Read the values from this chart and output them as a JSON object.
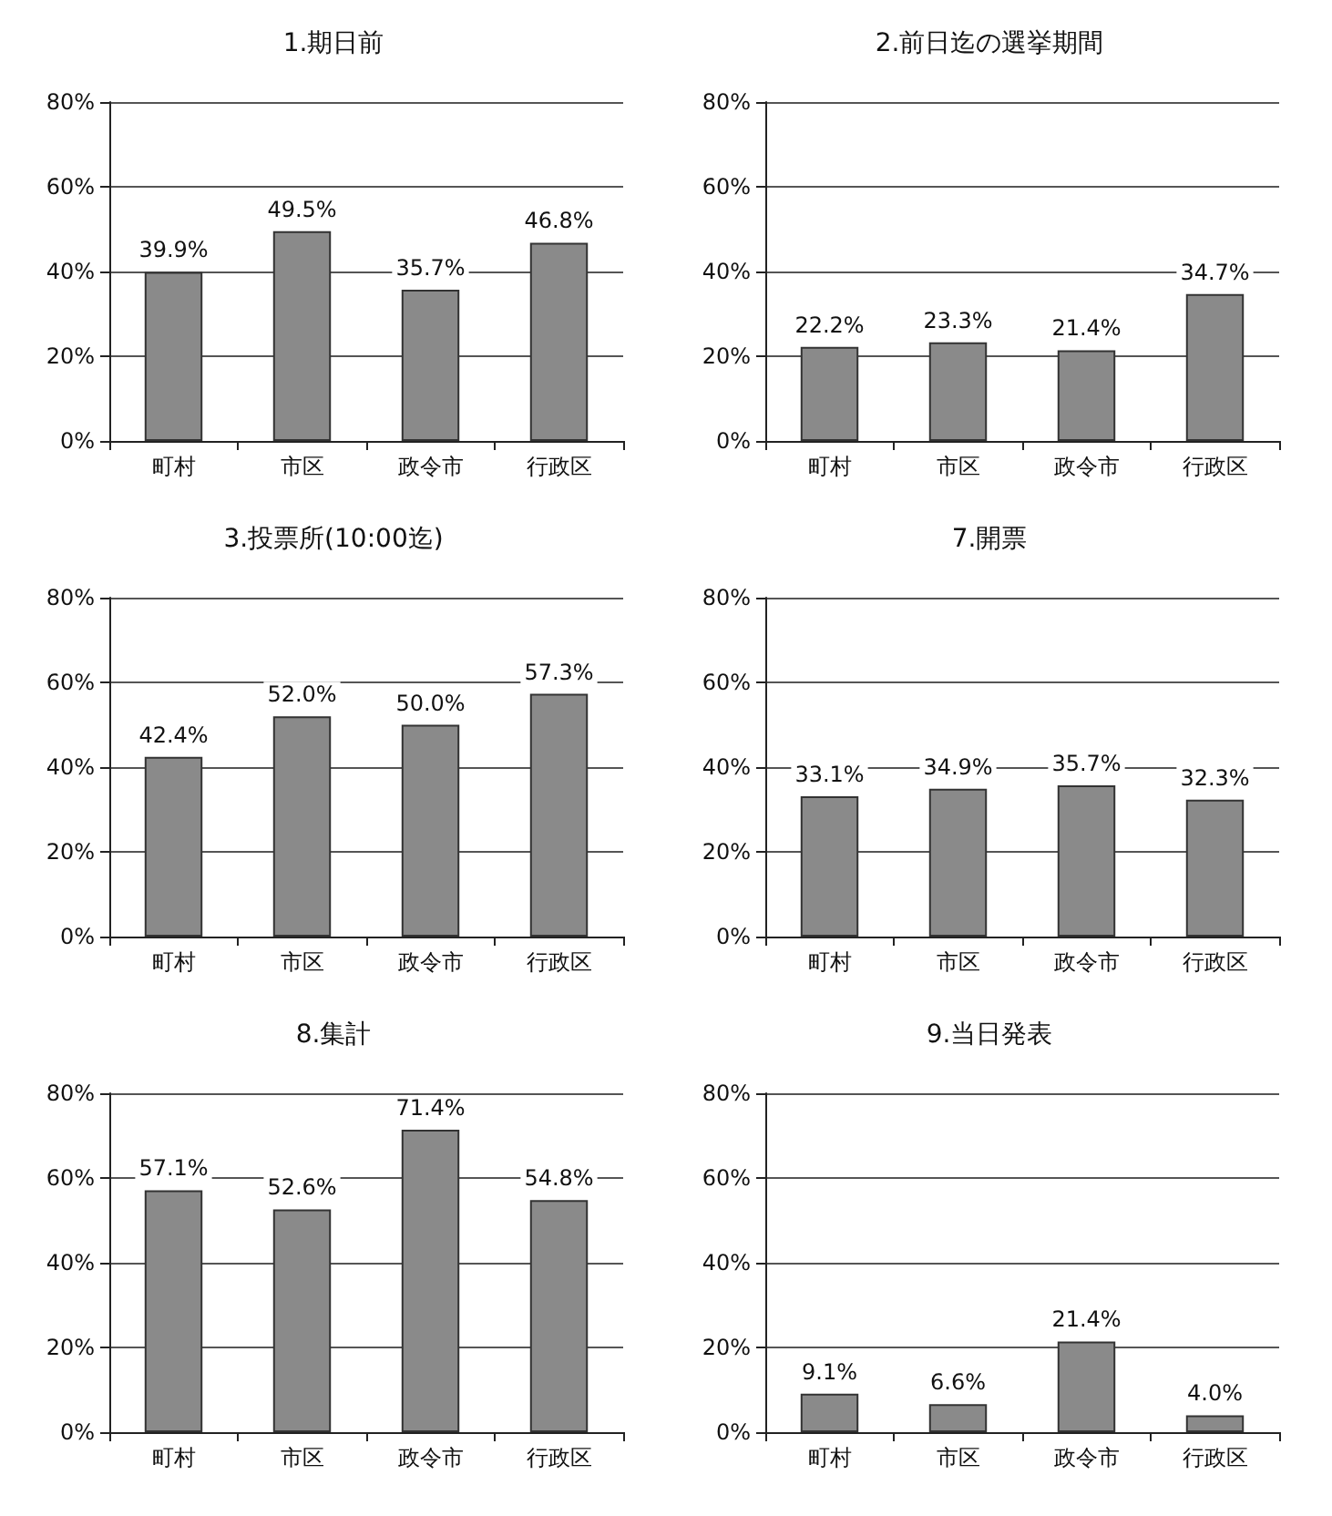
{
  "chart_data": [
    {
      "type": "bar",
      "title": "1.期日前",
      "categories": [
        "町村",
        "市区",
        "政令市",
        "行政区"
      ],
      "values": [
        39.9,
        49.5,
        35.7,
        46.8
      ],
      "color": "#8a8a8a",
      "value_labels": [
        "39.9%",
        "49.5%",
        "35.7%",
        "46.8%"
      ],
      "ylim": [
        0,
        80
      ],
      "yticks": [
        {
          "value": 0,
          "label": "0%"
        },
        {
          "value": 20,
          "label": "20%"
        },
        {
          "value": 40,
          "label": "40%"
        },
        {
          "value": 60,
          "label": "60%"
        },
        {
          "value": 80,
          "label": "80%"
        }
      ],
      "grid": "y"
    },
    {
      "type": "bar",
      "title": "2.前日迄の選挙期間",
      "categories": [
        "町村",
        "市区",
        "政令市",
        "行政区"
      ],
      "values": [
        22.2,
        23.3,
        21.4,
        34.7
      ],
      "color": "#8a8a8a",
      "value_labels": [
        "22.2%",
        "23.3%",
        "21.4%",
        "34.7%"
      ],
      "ylim": [
        0,
        80
      ],
      "yticks": [
        {
          "value": 0,
          "label": "0%"
        },
        {
          "value": 20,
          "label": "20%"
        },
        {
          "value": 40,
          "label": "40%"
        },
        {
          "value": 60,
          "label": "60%"
        },
        {
          "value": 80,
          "label": "80%"
        }
      ],
      "grid": "y"
    },
    {
      "type": "bar",
      "title": "3.投票所(10:00迄)",
      "categories": [
        "町村",
        "市区",
        "政令市",
        "行政区"
      ],
      "values": [
        42.4,
        52.0,
        50.0,
        57.3
      ],
      "color": "#8a8a8a",
      "value_labels": [
        "42.4%",
        "52.0%",
        "50.0%",
        "57.3%"
      ],
      "ylim": [
        0,
        80
      ],
      "yticks": [
        {
          "value": 0,
          "label": "0%"
        },
        {
          "value": 20,
          "label": "20%"
        },
        {
          "value": 40,
          "label": "40%"
        },
        {
          "value": 60,
          "label": "60%"
        },
        {
          "value": 80,
          "label": "80%"
        }
      ],
      "grid": "y"
    },
    {
      "type": "bar",
      "title": "7.開票",
      "categories": [
        "町村",
        "市区",
        "政令市",
        "行政区"
      ],
      "values": [
        33.1,
        34.9,
        35.7,
        32.3
      ],
      "color": "#8a8a8a",
      "value_labels": [
        "33.1%",
        "34.9%",
        "35.7%",
        "32.3%"
      ],
      "ylim": [
        0,
        80
      ],
      "yticks": [
        {
          "value": 0,
          "label": "0%"
        },
        {
          "value": 20,
          "label": "20%"
        },
        {
          "value": 40,
          "label": "40%"
        },
        {
          "value": 60,
          "label": "60%"
        },
        {
          "value": 80,
          "label": "80%"
        }
      ],
      "grid": "y"
    },
    {
      "type": "bar",
      "title": "8.集計",
      "categories": [
        "町村",
        "市区",
        "政令市",
        "行政区"
      ],
      "values": [
        57.1,
        52.6,
        71.4,
        54.8
      ],
      "color": "#8a8a8a",
      "value_labels": [
        "57.1%",
        "52.6%",
        "71.4%",
        "54.8%"
      ],
      "ylim": [
        0,
        80
      ],
      "yticks": [
        {
          "value": 0,
          "label": "0%"
        },
        {
          "value": 20,
          "label": "20%"
        },
        {
          "value": 40,
          "label": "40%"
        },
        {
          "value": 60,
          "label": "60%"
        },
        {
          "value": 80,
          "label": "80%"
        }
      ],
      "grid": "y"
    },
    {
      "type": "bar",
      "title": "9.当日発表",
      "categories": [
        "町村",
        "市区",
        "政令市",
        "行政区"
      ],
      "values": [
        9.1,
        6.6,
        21.4,
        4.0
      ],
      "color": "#8a8a8a",
      "value_labels": [
        "9.1%",
        "6.6%",
        "21.4%",
        "4.0%"
      ],
      "ylim": [
        0,
        80
      ],
      "yticks": [
        {
          "value": 0,
          "label": "0%"
        },
        {
          "value": 20,
          "label": "20%"
        },
        {
          "value": 40,
          "label": "40%"
        },
        {
          "value": 60,
          "label": "60%"
        },
        {
          "value": 80,
          "label": "80%"
        }
      ],
      "grid": "y"
    }
  ]
}
